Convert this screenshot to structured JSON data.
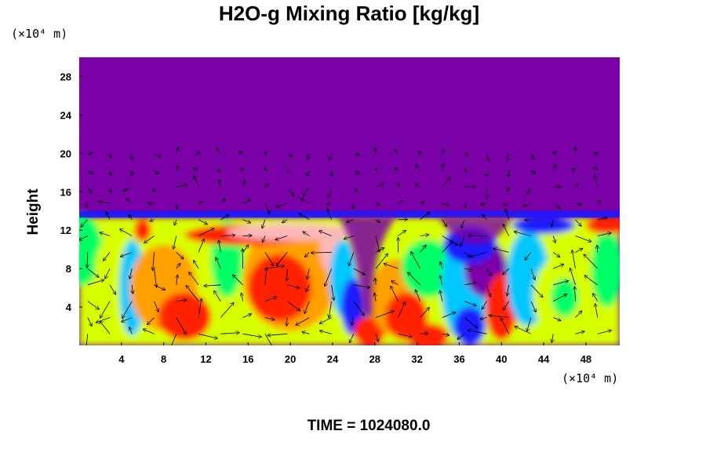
{
  "chart_data": {
    "type": "heatmap",
    "title": "H2O-g Mixing Ratio [kg/kg]",
    "ylabel": "Height",
    "xunit": "(×10⁴ m)",
    "yunit": "(×10⁴ m)",
    "xticks": [
      4,
      8,
      12,
      16,
      20,
      24,
      28,
      32,
      36,
      40,
      44,
      48
    ],
    "yticks": [
      4,
      8,
      12,
      16,
      20,
      24,
      28
    ],
    "xlim": [
      0,
      51.2
    ],
    "ylim": [
      0,
      30
    ],
    "time_label": "TIME = 1024080.0",
    "colormap": [
      "#7a00a8",
      "#1a1aff",
      "#00c8ff",
      "#00ff66",
      "#d8ff00",
      "#ffa000",
      "#ff2000",
      "#ffb8b8"
    ],
    "colormap_note": "rainbow scale, low = purple, high = pink",
    "overlay": "wind vector arrows"
  }
}
